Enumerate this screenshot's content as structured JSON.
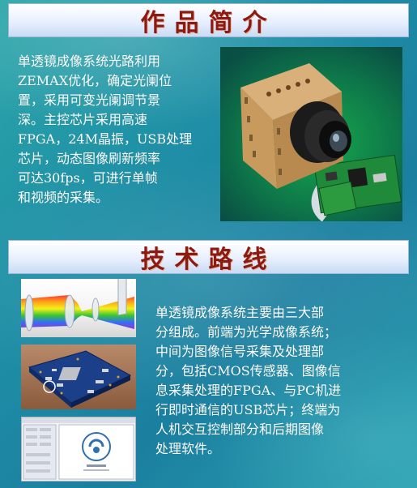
{
  "intro": {
    "title": "作品简介",
    "lines": [
      "单透镜成像系统光路利用",
      "ZEMAX优化，确定光阑位",
      "置，采用可变光阑调节景",
      "深。主控芯片采用高速",
      "FPGA，24M晶振，USB处理",
      "芯片，动态图像刷新频率",
      "可达30fps，可进行单帧",
      "和视频的采集。"
    ]
  },
  "tech": {
    "title": "技术路线",
    "lines": [
      "单透镜成像系统主要由三大部",
      "分组成。前端为光学成像系统；",
      "中间为图像信号采集及处理部",
      "分，包括CMOS传感器、图像信",
      "息采集处理的FPGA、与PC机进",
      "行即时通信的USB芯片；终端为",
      "人机交互控制部分和后期图像",
      "处理软件。"
    ]
  },
  "colors": {
    "banner_text": "#8b1b12",
    "body_text": "#ffffff",
    "background": "#1f8fa6"
  }
}
